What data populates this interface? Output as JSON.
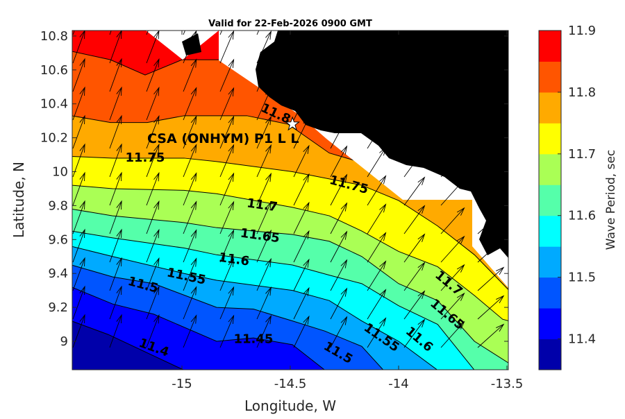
{
  "chart_data": {
    "type": "contour",
    "title": "Valid for 22-Feb-2026 0900 GMT",
    "xlabel": "Longitude, W",
    "ylabel": "Latitude, N",
    "xlim": [
      -15.51,
      -13.49
    ],
    "ylim": [
      8.83,
      10.83
    ],
    "xticks": [
      -15,
      -14.5,
      -14,
      -13.5
    ],
    "xtick_labels": [
      "-15",
      "-14.5",
      "-14",
      "-13.5"
    ],
    "yticks": [
      9,
      9.2,
      9.4,
      9.6,
      9.8,
      10,
      10.2,
      10.4,
      10.6,
      10.8
    ],
    "ytick_labels": [
      "9",
      "9.2",
      "9.4",
      "9.6",
      "9.8",
      "10",
      "10.2",
      "10.4",
      "10.6",
      "10.8"
    ],
    "colorbar": {
      "label": "Wave Period, sec",
      "range": [
        11.35,
        11.9
      ],
      "levels": [
        11.35,
        11.4,
        11.45,
        11.5,
        11.55,
        11.6,
        11.65,
        11.7,
        11.75,
        11.8,
        11.85,
        11.9
      ],
      "colors": [
        "#0000aa",
        "#0000ff",
        "#0055ff",
        "#00aaff",
        "#00ffff",
        "#55ffaa",
        "#aaff55",
        "#ffff00",
        "#ffaa00",
        "#ff5500",
        "#ff0000"
      ],
      "ticks": [
        11.4,
        11.5,
        11.6,
        11.7,
        11.8,
        11.9
      ],
      "tick_labels": [
        "11.4",
        "11.5",
        "11.6",
        "11.7",
        "11.8",
        "11.9"
      ]
    },
    "contours": [
      {
        "level": 11.4,
        "points": [
          [
            -15.51,
            9.12
          ],
          [
            -15.34,
            9.04
          ],
          [
            -14.99,
            8.83
          ]
        ]
      },
      {
        "level": 11.45,
        "points": [
          [
            -15.51,
            9.32
          ],
          [
            -15.32,
            9.22
          ],
          [
            -15.13,
            9.16
          ],
          [
            -14.84,
            9.0
          ],
          [
            -14.67,
            9.02
          ],
          [
            -14.49,
            8.98
          ],
          [
            -14.34,
            8.83
          ]
        ]
      },
      {
        "level": 11.5,
        "points": [
          [
            -15.51,
            9.45
          ],
          [
            -15.32,
            9.38
          ],
          [
            -15.13,
            9.34
          ],
          [
            -14.84,
            9.2
          ],
          [
            -14.67,
            9.19
          ],
          [
            -14.49,
            9.12
          ],
          [
            -14.34,
            9.06
          ],
          [
            -14.17,
            8.97
          ],
          [
            -14.07,
            8.83
          ]
        ]
      },
      {
        "level": 11.55,
        "points": [
          [
            -15.51,
            9.56
          ],
          [
            -15.32,
            9.5
          ],
          [
            -14.99,
            9.4
          ],
          [
            -14.84,
            9.36
          ],
          [
            -14.49,
            9.3
          ],
          [
            -14.32,
            9.24
          ],
          [
            -14.17,
            9.12
          ],
          [
            -14.0,
            9.0
          ],
          [
            -13.82,
            8.83
          ]
        ]
      },
      {
        "level": 11.6,
        "points": [
          [
            -15.51,
            9.65
          ],
          [
            -15.32,
            9.61
          ],
          [
            -14.99,
            9.55
          ],
          [
            -14.84,
            9.51
          ],
          [
            -14.49,
            9.45
          ],
          [
            -14.32,
            9.39
          ],
          [
            -14.17,
            9.34
          ],
          [
            -14.0,
            9.21
          ],
          [
            -13.82,
            9.1
          ],
          [
            -13.65,
            8.83
          ]
        ]
      },
      {
        "level": 11.65,
        "points": [
          [
            -15.51,
            9.78
          ],
          [
            -15.32,
            9.74
          ],
          [
            -14.99,
            9.7
          ],
          [
            -14.84,
            9.67
          ],
          [
            -14.49,
            9.63
          ],
          [
            -14.32,
            9.59
          ],
          [
            -14.17,
            9.5
          ],
          [
            -14.0,
            9.34
          ],
          [
            -13.82,
            9.24
          ],
          [
            -13.65,
            9.0
          ],
          [
            -13.49,
            8.87
          ]
        ]
      },
      {
        "level": 11.7,
        "points": [
          [
            -15.51,
            9.92
          ],
          [
            -15.32,
            9.9
          ],
          [
            -14.99,
            9.89
          ],
          [
            -14.84,
            9.87
          ],
          [
            -14.49,
            9.79
          ],
          [
            -14.32,
            9.74
          ],
          [
            -14.17,
            9.65
          ],
          [
            -14.0,
            9.53
          ],
          [
            -13.82,
            9.44
          ],
          [
            -13.65,
            9.27
          ],
          [
            -13.52,
            9.13
          ],
          [
            -13.49,
            9.12
          ]
        ]
      },
      {
        "level": 11.75,
        "points": [
          [
            -15.51,
            10.09
          ],
          [
            -15.32,
            10.08
          ],
          [
            -14.99,
            10.08
          ],
          [
            -14.84,
            10.06
          ],
          [
            -14.49,
            10.0
          ],
          [
            -14.17,
            9.92
          ],
          [
            -14.0,
            9.83
          ],
          [
            -13.82,
            9.68
          ],
          [
            -13.65,
            9.51
          ],
          [
            -13.49,
            9.3
          ]
        ]
      },
      {
        "level": 11.8,
        "points": [
          [
            -15.51,
            10.33
          ],
          [
            -15.33,
            10.29
          ],
          [
            -15.16,
            10.29
          ],
          [
            -14.99,
            10.33
          ],
          [
            -14.7,
            10.33
          ],
          [
            -14.51,
            10.28
          ],
          [
            -14.32,
            10.11
          ],
          [
            -13.49,
            9.8
          ]
        ]
      },
      {
        "level": 11.85,
        "points": [
          [
            -15.51,
            10.71
          ],
          [
            -15.33,
            10.66
          ],
          [
            -15.17,
            10.57
          ],
          [
            -15.0,
            10.66
          ],
          [
            -14.83,
            10.66
          ],
          [
            -14.78,
            10.83
          ]
        ]
      }
    ],
    "contour_labels": [
      {
        "text": "11.75",
        "lon": -15.17,
        "lat": 10.08
      },
      {
        "text": "11.8",
        "lon": -14.6,
        "lat": 10.27
      },
      {
        "text": "11.75",
        "lon": -14.23,
        "lat": 9.92
      },
      {
        "text": "11.7",
        "lon": -14.63,
        "lat": 9.8
      },
      {
        "text": "11.65",
        "lon": -14.64,
        "lat": 9.62
      },
      {
        "text": "11.6",
        "lon": -14.76,
        "lat": 9.48
      },
      {
        "text": "11.55",
        "lon": -14.98,
        "lat": 9.38
      },
      {
        "text": "11.5",
        "lon": -15.18,
        "lat": 9.33
      },
      {
        "text": "11.4",
        "lon": -15.13,
        "lat": 8.96
      },
      {
        "text": "11.45",
        "lon": -14.67,
        "lat": 9.01
      },
      {
        "text": "11.5",
        "lon": -14.28,
        "lat": 8.93
      },
      {
        "text": "11.55",
        "lon": -14.08,
        "lat": 9.02
      },
      {
        "text": "11.6",
        "lon": -13.89,
        "lat": 9.03
      },
      {
        "text": "11.65",
        "lon": -13.79,
        "lat": 9.14
      },
      {
        "text": "11.7",
        "lon": -13.77,
        "lat": 9.34
      }
    ],
    "station": {
      "name": "CSA (ONHYM) P1 L L",
      "lon": -14.49,
      "lat": 10.28,
      "label_lon": -14.81,
      "label_lat": 10.2
    },
    "wave_direction_deg_from_north_by_column": [
      20,
      20,
      21,
      22,
      23,
      24,
      26,
      28,
      32,
      36,
      42,
      48
    ]
  }
}
